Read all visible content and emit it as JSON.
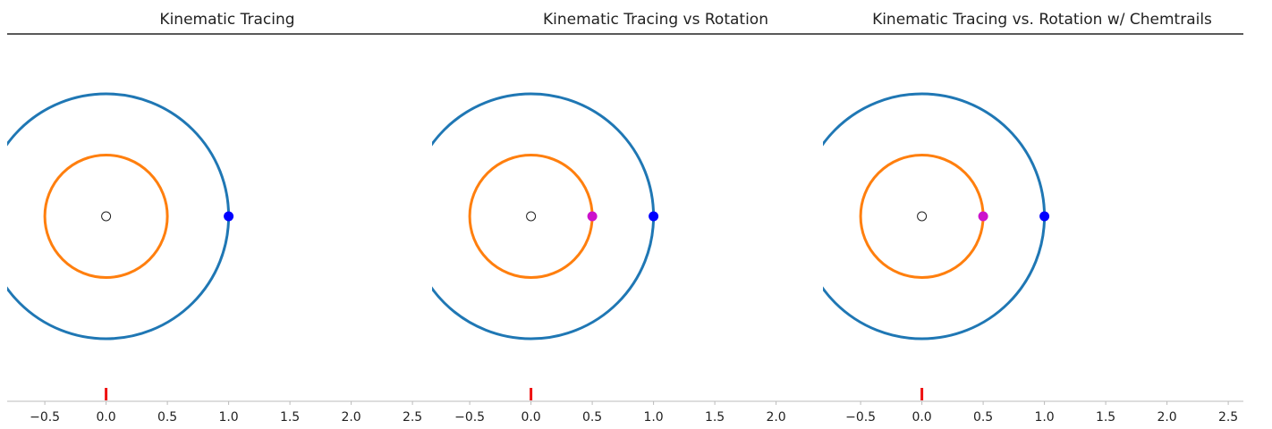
{
  "colors": {
    "outer_circle": "#1f77b4",
    "inner_circle": "#ff7f0e",
    "outer_point": "#0000ff",
    "inner_point": "#cc11cc",
    "origin_marker": "#ffffff",
    "origin_tick": "#ee1111",
    "axis": "#222222"
  },
  "chart_data": [
    {
      "type": "line",
      "title": "Kinematic Tracing",
      "xlabel": "",
      "ylabel": "",
      "xlim": [
        -0.8,
        2.5
      ],
      "ylim": [
        -1.5,
        1.5
      ],
      "x_ticks": [
        -0.5,
        0.0,
        0.5,
        1.0,
        1.5,
        2.0,
        2.5
      ],
      "x_tick_labels": [
        "−0.5",
        "0.0",
        "0.5",
        "1.0",
        "1.5",
        "2.0",
        "2.5"
      ],
      "grid": false,
      "circles": [
        {
          "center": [
            0,
            0
          ],
          "radius": 1.0,
          "color": "#1f77b4"
        },
        {
          "center": [
            0,
            0
          ],
          "radius": 0.5,
          "color": "#ff7f0e"
        }
      ],
      "points": [
        {
          "x": 0.0,
          "y": 0.0,
          "color": "#ffffff",
          "outline": "#222222"
        },
        {
          "x": 1.0,
          "y": 0.0,
          "color": "#0000ff"
        }
      ],
      "origin_tick_x": 0.0
    },
    {
      "type": "line",
      "title": "Kinematic Tracing vs Rotation",
      "xlabel": "",
      "ylabel": "",
      "xlim": [
        -0.8,
        2.0
      ],
      "ylim": [
        -1.5,
        1.5
      ],
      "x_ticks": [
        -0.5,
        0.0,
        0.5,
        1.0,
        1.5,
        2.0
      ],
      "x_tick_labels": [
        "−0.5",
        "0.0",
        "0.5",
        "1.0",
        "1.5",
        "2.0"
      ],
      "grid": false,
      "circles": [
        {
          "center": [
            0,
            0
          ],
          "radius": 1.0,
          "color": "#1f77b4"
        },
        {
          "center": [
            0,
            0
          ],
          "radius": 0.5,
          "color": "#ff7f0e"
        }
      ],
      "points": [
        {
          "x": 0.0,
          "y": 0.0,
          "color": "#ffffff",
          "outline": "#222222"
        },
        {
          "x": 0.5,
          "y": 0.0,
          "color": "#cc11cc"
        },
        {
          "x": 1.0,
          "y": 0.0,
          "color": "#0000ff"
        }
      ],
      "origin_tick_x": 0.0
    },
    {
      "type": "line",
      "title": "Kinematic Tracing vs. Rotation w/ Chemtrails",
      "xlabel": "",
      "ylabel": "",
      "xlim": [
        -0.8,
        2.5
      ],
      "ylim": [
        -1.5,
        1.5
      ],
      "x_ticks": [
        -0.5,
        0.0,
        0.5,
        1.0,
        1.5,
        2.0,
        2.5
      ],
      "x_tick_labels": [
        "−0.5",
        "0.0",
        "0.5",
        "1.0",
        "1.5",
        "2.0",
        "2.5"
      ],
      "grid": false,
      "circles": [
        {
          "center": [
            0,
            0
          ],
          "radius": 1.0,
          "color": "#1f77b4"
        },
        {
          "center": [
            0,
            0
          ],
          "radius": 0.5,
          "color": "#ff7f0e"
        }
      ],
      "points": [
        {
          "x": 0.0,
          "y": 0.0,
          "color": "#ffffff",
          "outline": "#222222"
        },
        {
          "x": 0.5,
          "y": 0.0,
          "color": "#cc11cc"
        },
        {
          "x": 1.0,
          "y": 0.0,
          "color": "#0000ff"
        }
      ],
      "origin_tick_x": 0.0
    }
  ]
}
